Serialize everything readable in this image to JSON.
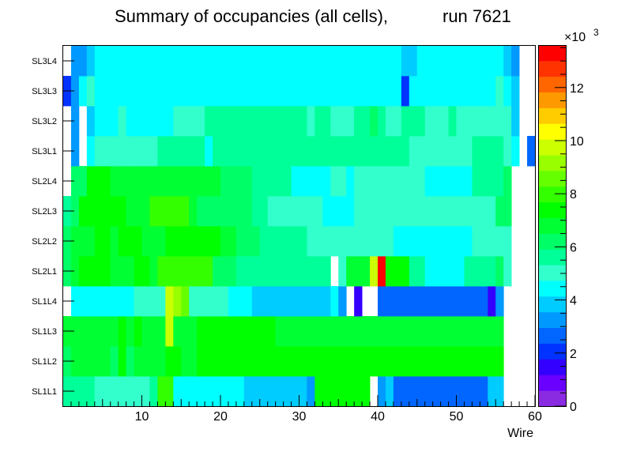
{
  "chart_data": {
    "type": "heatmap",
    "title": "Summary of occupancies (all cells),",
    "title_run": "run 7621",
    "xlabel": "Wire",
    "ylabel": "",
    "x_range": [
      0,
      60
    ],
    "x_ticks": [
      "10",
      "20",
      "30",
      "40",
      "50",
      "60"
    ],
    "x_tick_values": [
      10,
      20,
      30,
      40,
      50,
      60
    ],
    "rows_bottom_to_top": [
      "SL1L1",
      "SL1L2",
      "SL1L3",
      "SL1L4",
      "SL2L1",
      "SL2L2",
      "SL2L3",
      "SL2L4",
      "SL3L1",
      "SL3L2",
      "SL3L3",
      "SL3L4"
    ],
    "z_range": [
      0,
      13600
    ],
    "z_exponent_label": "×10",
    "z_exponent_power": "3",
    "z_ticks": [
      "0",
      "2",
      "4",
      "6",
      "8",
      "10",
      "12"
    ],
    "z_tick_values": [
      0,
      2000,
      4000,
      6000,
      8000,
      10000,
      12000
    ],
    "palette": [
      "#8a2be2",
      "#6a00ff",
      "#3300ff",
      "#0033ff",
      "#0066ff",
      "#0099ff",
      "#00ccff",
      "#00ffff",
      "#33ffcc",
      "#00ff99",
      "#00ff66",
      "#00ff33",
      "#00ff00",
      "#33ff00",
      "#66ff00",
      "#99ff00",
      "#ccff00",
      "#ffff00",
      "#ffcc00",
      "#ff9900",
      "#ff6600",
      "#ff3300",
      "#ff0000"
    ],
    "segments": [
      {
        "row": "SL1L1",
        "runs": [
          [
            1,
            4,
            5800
          ],
          [
            5,
            11,
            5100
          ],
          [
            12,
            12,
            5900
          ],
          [
            13,
            14,
            7800
          ],
          [
            15,
            23,
            4600
          ],
          [
            24,
            31,
            3800
          ],
          [
            32,
            32,
            3200
          ],
          [
            33,
            39,
            7400
          ],
          [
            40,
            40,
            null
          ],
          [
            41,
            41,
            3300
          ],
          [
            42,
            42,
            3800
          ],
          [
            43,
            54,
            2900
          ],
          [
            55,
            56,
            3800
          ],
          [
            57,
            60,
            null
          ]
        ]
      },
      {
        "row": "SL1L2",
        "runs": [
          [
            1,
            1,
            6500
          ],
          [
            2,
            6,
            7000
          ],
          [
            7,
            7,
            6500
          ],
          [
            8,
            8,
            7200
          ],
          [
            9,
            9,
            6500
          ],
          [
            10,
            13,
            7000
          ],
          [
            14,
            15,
            7300
          ],
          [
            16,
            17,
            7000
          ],
          [
            18,
            21,
            7500
          ],
          [
            22,
            27,
            7100
          ],
          [
            28,
            48,
            7400
          ],
          [
            49,
            55,
            7200
          ],
          [
            56,
            56,
            7600
          ],
          [
            57,
            60,
            null
          ]
        ]
      },
      {
        "row": "SL1L3",
        "runs": [
          [
            1,
            7,
            6900
          ],
          [
            8,
            8,
            7400
          ],
          [
            9,
            9,
            6700
          ],
          [
            10,
            10,
            7400
          ],
          [
            11,
            13,
            6800
          ],
          [
            14,
            14,
            9800
          ],
          [
            15,
            17,
            7000
          ],
          [
            18,
            21,
            7300
          ],
          [
            22,
            27,
            7100
          ],
          [
            28,
            47,
            7000
          ],
          [
            48,
            56,
            6800
          ],
          [
            57,
            60,
            null
          ]
        ]
      },
      {
        "row": "SL1L4",
        "runs": [
          [
            1,
            1,
            null
          ],
          [
            2,
            9,
            4600
          ],
          [
            10,
            13,
            5200
          ],
          [
            14,
            14,
            10000
          ],
          [
            15,
            15,
            8900
          ],
          [
            16,
            16,
            8400
          ],
          [
            17,
            21,
            5300
          ],
          [
            22,
            24,
            4600
          ],
          [
            25,
            34,
            3800
          ],
          [
            35,
            35,
            4600
          ],
          [
            36,
            36,
            3500
          ],
          [
            37,
            37,
            null
          ],
          [
            38,
            38,
            1200
          ],
          [
            39,
            40,
            null
          ],
          [
            41,
            54,
            2800
          ],
          [
            55,
            55,
            1400
          ],
          [
            56,
            56,
            3000
          ],
          [
            57,
            60,
            null
          ]
        ]
      },
      {
        "row": "SL2L1",
        "runs": [
          [
            1,
            1,
            6000
          ],
          [
            2,
            2,
            6600
          ],
          [
            3,
            5,
            7600
          ],
          [
            6,
            6,
            7200
          ],
          [
            7,
            8,
            6800
          ],
          [
            9,
            9,
            7000
          ],
          [
            10,
            11,
            7500
          ],
          [
            12,
            12,
            6800
          ],
          [
            13,
            19,
            7700
          ],
          [
            20,
            22,
            6200
          ],
          [
            23,
            34,
            5600
          ],
          [
            35,
            35,
            null
          ],
          [
            36,
            36,
            5000
          ],
          [
            37,
            39,
            7000
          ],
          [
            40,
            40,
            10000
          ],
          [
            41,
            41,
            13200
          ],
          [
            42,
            44,
            7100
          ],
          [
            45,
            46,
            5600
          ],
          [
            47,
            51,
            4500
          ],
          [
            52,
            55,
            5800
          ],
          [
            56,
            56,
            6200
          ],
          [
            57,
            57,
            5200
          ],
          [
            58,
            60,
            null
          ]
        ]
      },
      {
        "row": "SL2L2",
        "runs": [
          [
            1,
            1,
            6000
          ],
          [
            2,
            4,
            6600
          ],
          [
            5,
            6,
            7300
          ],
          [
            7,
            7,
            6700
          ],
          [
            8,
            10,
            7100
          ],
          [
            11,
            13,
            6900
          ],
          [
            14,
            20,
            7400
          ],
          [
            21,
            22,
            6900
          ],
          [
            23,
            25,
            6200
          ],
          [
            26,
            31,
            5400
          ],
          [
            32,
            32,
            5000
          ],
          [
            33,
            42,
            5200
          ],
          [
            43,
            52,
            4700
          ],
          [
            53,
            57,
            5300
          ],
          [
            58,
            60,
            null
          ]
        ]
      },
      {
        "row": "SL2L3",
        "runs": [
          [
            1,
            1,
            5500
          ],
          [
            2,
            2,
            6000
          ],
          [
            3,
            8,
            7500
          ],
          [
            9,
            11,
            6800
          ],
          [
            12,
            16,
            7700
          ],
          [
            17,
            17,
            7000
          ],
          [
            18,
            24,
            6500
          ],
          [
            25,
            26,
            5800
          ],
          [
            27,
            33,
            5200
          ],
          [
            34,
            37,
            4600
          ],
          [
            38,
            43,
            5100
          ],
          [
            44,
            52,
            4800
          ],
          [
            53,
            55,
            5200
          ],
          [
            56,
            57,
            6000
          ],
          [
            58,
            60,
            null
          ]
        ]
      },
      {
        "row": "SL2L4",
        "runs": [
          [
            1,
            1,
            null
          ],
          [
            2,
            3,
            6200
          ],
          [
            4,
            6,
            7300
          ],
          [
            7,
            8,
            6800
          ],
          [
            9,
            9,
            7000
          ],
          [
            10,
            17,
            6600
          ],
          [
            18,
            20,
            6900
          ],
          [
            21,
            24,
            6200
          ],
          [
            25,
            29,
            5600
          ],
          [
            30,
            34,
            4600
          ],
          [
            35,
            36,
            5000
          ],
          [
            37,
            37,
            4600
          ],
          [
            38,
            46,
            5100
          ],
          [
            47,
            52,
            4500
          ],
          [
            53,
            56,
            5400
          ],
          [
            57,
            57,
            6000
          ],
          [
            58,
            60,
            null
          ]
        ]
      },
      {
        "row": "SL3L1",
        "runs": [
          [
            1,
            1,
            null
          ],
          [
            2,
            2,
            3400
          ],
          [
            3,
            3,
            null
          ],
          [
            4,
            4,
            4400
          ],
          [
            5,
            7,
            4800
          ],
          [
            8,
            9,
            5200
          ],
          [
            10,
            12,
            5000
          ],
          [
            13,
            13,
            5400
          ],
          [
            14,
            18,
            5600
          ],
          [
            19,
            19,
            4700
          ],
          [
            20,
            23,
            5400
          ],
          [
            24,
            26,
            5600
          ],
          [
            27,
            44,
            5400
          ],
          [
            45,
            52,
            5000
          ],
          [
            53,
            56,
            5600
          ],
          [
            57,
            57,
            4900
          ],
          [
            58,
            58,
            4400
          ],
          [
            59,
            59,
            null
          ],
          [
            60,
            60,
            2800
          ]
        ]
      },
      {
        "row": "SL3L2",
        "runs": [
          [
            1,
            1,
            null
          ],
          [
            2,
            2,
            3500
          ],
          [
            3,
            3,
            null
          ],
          [
            4,
            4,
            3700
          ],
          [
            5,
            7,
            4700
          ],
          [
            8,
            8,
            5200
          ],
          [
            9,
            14,
            4700
          ],
          [
            15,
            18,
            5200
          ],
          [
            19,
            29,
            5400
          ],
          [
            30,
            31,
            5400
          ],
          [
            32,
            32,
            4800
          ],
          [
            33,
            34,
            5400
          ],
          [
            35,
            35,
            4900
          ],
          [
            36,
            37,
            5200
          ],
          [
            38,
            39,
            5600
          ],
          [
            40,
            40,
            6400
          ],
          [
            41,
            41,
            5600
          ],
          [
            42,
            43,
            4900
          ],
          [
            44,
            46,
            5400
          ],
          [
            47,
            47,
            4800
          ],
          [
            48,
            49,
            5300
          ],
          [
            50,
            50,
            5600
          ],
          [
            51,
            54,
            4800
          ],
          [
            55,
            57,
            5200
          ],
          [
            58,
            58,
            3800
          ],
          [
            59,
            60,
            null
          ]
        ]
      },
      {
        "row": "SL3L3",
        "runs": [
          [
            1,
            1,
            2200
          ],
          [
            2,
            2,
            3200
          ],
          [
            3,
            3,
            4600
          ],
          [
            4,
            4,
            5300
          ],
          [
            5,
            7,
            4600
          ],
          [
            8,
            9,
            4400
          ],
          [
            10,
            43,
            4500
          ],
          [
            44,
            44,
            1800
          ],
          [
            45,
            55,
            4500
          ],
          [
            56,
            56,
            4900
          ],
          [
            57,
            57,
            4200
          ],
          [
            58,
            58,
            3900
          ],
          [
            59,
            60,
            null
          ]
        ]
      },
      {
        "row": "SL3L4",
        "runs": [
          [
            1,
            1,
            null
          ],
          [
            2,
            3,
            3200
          ],
          [
            4,
            4,
            3800
          ],
          [
            5,
            43,
            4400
          ],
          [
            44,
            45,
            4000
          ],
          [
            46,
            56,
            4500
          ],
          [
            57,
            57,
            3900
          ],
          [
            58,
            58,
            3500
          ],
          [
            59,
            60,
            null
          ]
        ]
      }
    ]
  }
}
